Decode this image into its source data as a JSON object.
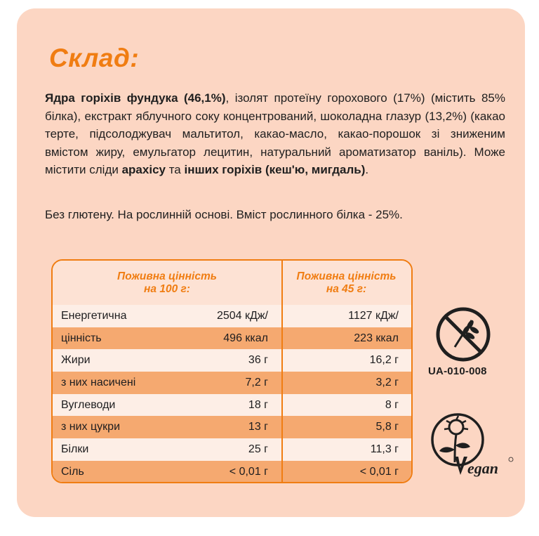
{
  "title": "Склад:",
  "composition": {
    "p1_bold": "Ядра горіхів фундука (46,1%)",
    "p1_rest": ", ізолят протеїну горохового (17%) (містить 85% білка), екстракт яблучного соку концентрований, шоколадна глазур (13,2%) (какао терте, підсолоджувач мальтитол, какао-масло, какао-порошок зі зниженим вмістом жиру, емульгатор лецитин, натуральний ароматизатор ваніль). Може містити сліди ",
    "allergen1": "арахісу",
    "connector": " та ",
    "allergen2": "інших горіхів (кеш'ю, мигдаль)",
    "end": "."
  },
  "extra_info": "Без глютену. На рослинній основі. Вміст рослинного білка - 25%.",
  "nutrition": {
    "header_100": "Поживна цінність на 100 г:",
    "header_45": "Поживна цінність на 45 г:",
    "rows": [
      {
        "label": "Енергетична",
        "per100": "2504 кДж/",
        "per45": "1127 кДж/"
      },
      {
        "label": "цінність",
        "per100": "496 ккал",
        "per45": "223 ккал"
      },
      {
        "label": "Жири",
        "per100": "36 г",
        "per45": "16,2 г"
      },
      {
        "label": "з них насичені",
        "per100": "7,2 г",
        "per45": "3,2 г"
      },
      {
        "label": "Вуглеводи",
        "per100": "18 г",
        "per45": "8 г"
      },
      {
        "label": "з них цукри",
        "per100": "13 г",
        "per45": "5,8 г"
      },
      {
        "label": "Білки",
        "per100": "25 г",
        "per45": "11,3 г"
      },
      {
        "label": "Сіль",
        "per100": "< 0,01 г",
        "per45": "< 0,01 г"
      }
    ]
  },
  "gluten_free_code": "UA-010-008",
  "colors": {
    "accent": "#f07d12",
    "card": "#fcd6c3",
    "row_alt": "#f5a970"
  },
  "icons": [
    "gluten-free-icon",
    "vegan-icon"
  ]
}
